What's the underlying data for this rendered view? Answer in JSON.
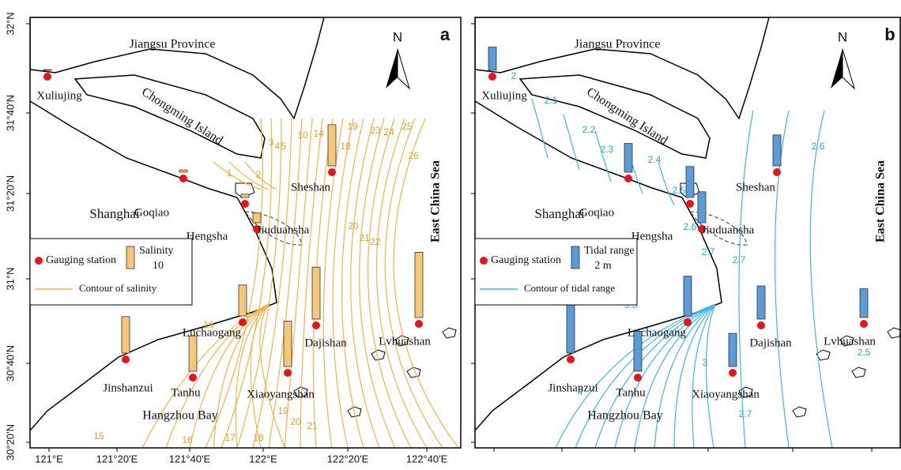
{
  "axes": {
    "lat": [
      "32°N",
      "31°40'N",
      "31°20'N",
      "31°N",
      "30°40'N",
      "30°20'N"
    ],
    "lon": [
      "121°E",
      "121°20'E",
      "121°40'E",
      "122°E",
      "122°20'E",
      "122°40'E"
    ]
  },
  "north": "N",
  "panels": [
    {
      "letter": "a",
      "places": {
        "province": "Jiangsu Province",
        "island": "Chongming Island",
        "city": "Shanghai",
        "sea": "East China Sea",
        "bay": "Hangzhou Bay"
      },
      "legend": {
        "station": "Gauging station",
        "bar_label": "Salinity",
        "bar_scale": 10,
        "line": "Contour of salinity"
      },
      "stations": [
        {
          "name": "Xuliujing",
          "value": 0.3
        },
        {
          "name": "Goqiao",
          "value": 1
        },
        {
          "name": "Hengsha",
          "value": 1.5
        },
        {
          "name": "Jiuduansha",
          "value": 4.5
        },
        {
          "name": "Sheshan",
          "value": 18.6
        },
        {
          "name": "Luchaogang",
          "value": 14
        },
        {
          "name": "Dajishan",
          "value": 23.5
        },
        {
          "name": "Lvhuashan",
          "value": 29.5
        },
        {
          "name": "Jinshanzui",
          "value": 16.5
        },
        {
          "name": "Tanhu",
          "value": 16
        },
        {
          "name": "Xiaoyangshan",
          "value": 20.5
        }
      ],
      "contour_labels": [
        "1",
        "2",
        "3",
        "4",
        "5",
        "10",
        "14",
        "18",
        "19",
        "23",
        "24",
        "25",
        "26",
        "20",
        "21",
        "22",
        "16",
        "15",
        "16",
        "17",
        "18",
        "19",
        "20",
        "21"
      ]
    },
    {
      "letter": "b",
      "places": {
        "province": "Jiangsu Province",
        "island": "Chongming Island",
        "city": "Shanghai",
        "sea": "East China Sea",
        "bay": "Hangzhou Bay"
      },
      "legend": {
        "station": "Gauging station",
        "bar_label": "Tidal range",
        "bar_scale": {
          "value": 2,
          "label": "2 m"
        },
        "line": "Contour of tidal range"
      },
      "stations": [
        {
          "name": "Xuliujing",
          "value": 2.1
        },
        {
          "name": "Goqiao",
          "value": 2.6
        },
        {
          "name": "Hengsha",
          "value": 2.8
        },
        {
          "name": "Jiuduansha",
          "value": 2.8
        },
        {
          "name": "Sheshan",
          "value": 2.8
        },
        {
          "name": "Luchaogang",
          "value": 3.6
        },
        {
          "name": "Dajishan",
          "value": 3
        },
        {
          "name": "Lvhuashan",
          "value": 2.6
        },
        {
          "name": "Jinshanzui",
          "value": 4.4
        },
        {
          "name": "Tanhu",
          "value": 3.6
        },
        {
          "name": "Xiaoyangshan",
          "value": 3
        }
      ],
      "contour_labels": [
        "2",
        "2.1",
        "2.2",
        "2.3",
        "2.4",
        "2.5",
        "2.6",
        "2.7",
        "2.7",
        "2.6",
        "3.5",
        "3",
        "4",
        "2.7",
        "2.5"
      ]
    }
  ]
}
